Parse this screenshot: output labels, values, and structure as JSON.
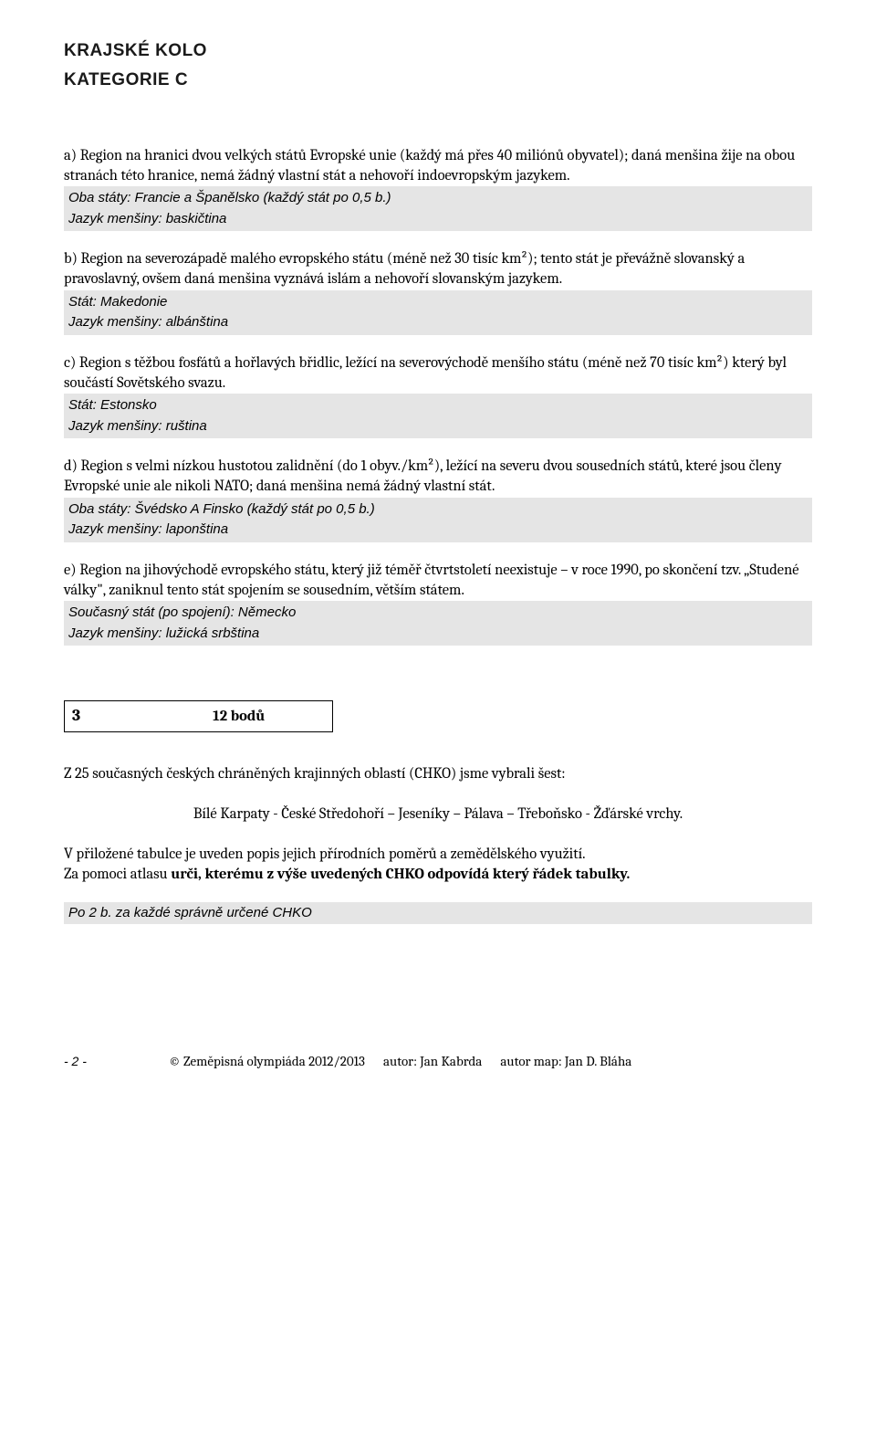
{
  "header": {
    "line1": "KRAJSKÉ KOLO",
    "line2": "KATEGORIE C"
  },
  "questions": [
    {
      "prompt": "a) Region na hranici dvou velkých států Evropské unie (každý má přes 40 miliónů obyvatel); daná menšina žije na obou stranách této hranice, nemá žádný vlastní stát a nehovoří indoevropským jazykem.",
      "answer_lines": [
        "Oba státy: Francie a Španělsko (každý stát po 0,5 b.)",
        "Jazyk menšiny: baskičtina"
      ]
    },
    {
      "prompt": "b) Region na severozápadě malého evropského státu (méně než 30 tisíc km²); tento stát je převážně slovanský a pravoslavný, ovšem daná menšina vyznává islám a nehovoří slovanským jazykem.",
      "answer_lines": [
        "Stát: Makedonie",
        "Jazyk menšiny: albánština"
      ]
    },
    {
      "prompt": "c) Region s těžbou fosfátů a hořlavých břidlic, ležící na severovýchodě menšího státu (méně než 70 tisíc km²) který byl součástí Sovětského svazu.",
      "answer_lines": [
        "Stát: Estonsko",
        "Jazyk menšiny: ruština"
      ]
    },
    {
      "prompt": "d) Region s velmi nízkou hustotou zalidnění (do 1 obyv./km²), ležící na severu dvou sousedních států, které jsou členy Evropské unie ale nikoli NATO; daná menšina nemá žádný vlastní stát.",
      "answer_lines": [
        "Oba státy: Švédsko A Finsko (každý stát po 0,5 b.)",
        "Jazyk menšiny: laponština"
      ]
    },
    {
      "prompt": "e) Region na jihovýchodě evropského státu, který již téměř čtvrtstoletí neexistuje – v roce 1990, po skončení tzv. „Studené války\", zaniknul tento stát spojením se sousedním, větším státem.",
      "answer_lines": [
        "Současný stát (po spojení): Německo",
        "Jazyk menšiny: lužická srbština"
      ]
    }
  ],
  "section3": {
    "number": "3",
    "points": "12 bodů",
    "intro": "Z 25 současných českých chráněných krajinných oblastí (CHKO) jsme vybrali šest:",
    "chko_list": "Bílé Karpaty - České Středohoří – Jeseníky –  Pálava – Třeboňsko - Žďárské vrchy.",
    "desc1": "V přiložené tabulce je uveden popis jejich přírodních poměrů a zemědělského využití.",
    "desc2_prefix": "Za pomoci atlasu ",
    "desc2_bold": "urči, kterému z výše uvedených CHKO odpovídá který řádek tabulky.",
    "scoring": "Po 2 b. za každé správně určené CHKO"
  },
  "footer": {
    "page": "- 2 -",
    "copyright": "© Zeměpisná olympiáda 2012/2013",
    "author1": "autor: Jan Kabrda",
    "author2": "autor map: Jan D. Bláha"
  },
  "styling": {
    "background_color": "#ffffff",
    "text_color": "#000000",
    "answer_bg": "#e5e5e5",
    "body_font_family": "Cambria, Georgia, serif",
    "answer_font_family": "Verdana, Geneva, sans-serif",
    "header_font_family": "Verdana, Geneva, sans-serif",
    "body_font_size": 16.5,
    "header_font_size": 19,
    "answer_font_size": 15
  }
}
